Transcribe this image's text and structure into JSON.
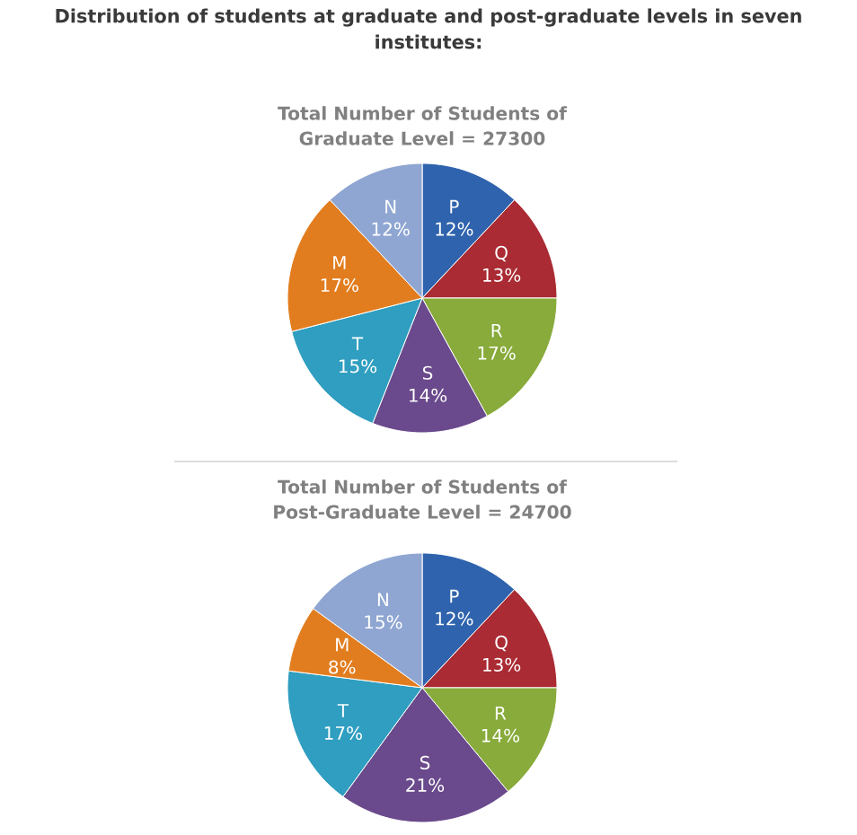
{
  "chart_data": [
    {
      "type": "pie",
      "title": "Distribution of students at graduate and post-graduate levels in seven institutes:",
      "subtitle": "Total Number of Students of Graduate Level = 27300",
      "categories": [
        "P",
        "Q",
        "R",
        "S",
        "T",
        "M",
        "N"
      ],
      "values": [
        12,
        13,
        17,
        14,
        15,
        17,
        12
      ],
      "value_labels": [
        "12%",
        "13%",
        "17%",
        "14%",
        "15%",
        "17%",
        "12%"
      ],
      "colors": [
        "#2f63ad",
        "#aa2b33",
        "#88ab3b",
        "#6a4a8c",
        "#2f9ec0",
        "#e27d1f",
        "#8fa6d2"
      ]
    },
    {
      "type": "pie",
      "title": "Total Number of Students of Post-Graduate Level = 24700",
      "categories": [
        "P",
        "Q",
        "R",
        "S",
        "T",
        "M",
        "N"
      ],
      "values": [
        12,
        13,
        14,
        21,
        17,
        8,
        15
      ],
      "value_labels": [
        "12%",
        "13%",
        "14%",
        "21%",
        "17%",
        "8%",
        "15%"
      ],
      "colors": [
        "#2f63ad",
        "#aa2b33",
        "#88ab3b",
        "#6a4a8c",
        "#2f9ec0",
        "#e27d1f",
        "#8fa6d2"
      ]
    }
  ]
}
